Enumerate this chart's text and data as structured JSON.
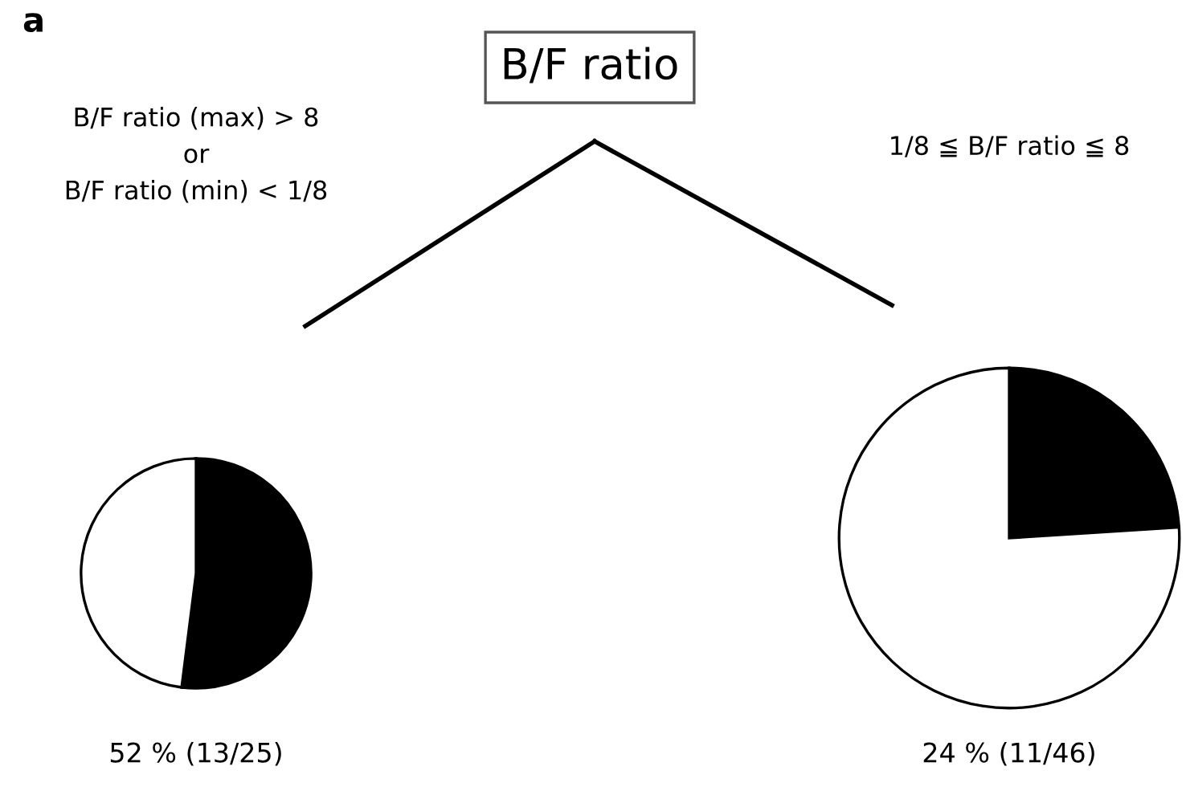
{
  "chart_data": [
    {
      "type": "other",
      "annotations": [
        "a",
        "B/F ratio"
      ]
    },
    {
      "type": "pie",
      "title": "B/F ratio (max) > 8\nor\nB/F ratio (min) < 1/8",
      "categories": [
        null,
        null
      ],
      "values": [
        52,
        48
      ],
      "colors": [
        "#000000",
        "#ffffff"
      ],
      "annotations": [
        "52 % (13/25)"
      ]
    },
    {
      "type": "pie",
      "title": "1/8 ≦ B/F ratio ≦ 8",
      "categories": [
        null,
        null
      ],
      "values": [
        24,
        76
      ],
      "colors": [
        "#000000",
        "#ffffff"
      ],
      "annotations": [
        "24 % (11/46)"
      ]
    }
  ]
}
